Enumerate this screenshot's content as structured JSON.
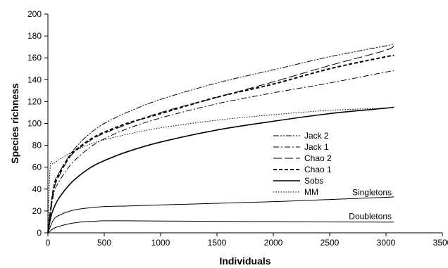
{
  "chart_data": {
    "type": "line",
    "xlabel": "Individuals",
    "ylabel": "Species richness",
    "xlim": [
      0,
      3500
    ],
    "ylim": [
      0,
      200
    ],
    "xticks": [
      0,
      500,
      1000,
      1500,
      2000,
      2500,
      3000,
      3500
    ],
    "yticks": [
      0,
      20,
      40,
      60,
      80,
      100,
      120,
      140,
      160,
      180,
      200
    ],
    "legend_position": "center-right",
    "series": [
      {
        "name": "Jack 2",
        "style": "dashdotdot",
        "width": 1,
        "x": [
          0,
          50,
          100,
          200,
          300,
          400,
          500,
          700,
          1000,
          1500,
          2000,
          2500,
          3000,
          3070
        ],
        "y": [
          0,
          42,
          55,
          72,
          84,
          93,
          100,
          110,
          122,
          137,
          149,
          161,
          171,
          173
        ]
      },
      {
        "name": "Jack 1",
        "style": "dashdot",
        "width": 1,
        "x": [
          0,
          50,
          100,
          200,
          300,
          400,
          500,
          700,
          1000,
          1500,
          2000,
          2500,
          3000,
          3070
        ],
        "y": [
          0,
          35,
          47,
          62,
          72,
          80,
          86,
          95,
          105,
          118,
          128,
          137,
          147,
          148
        ]
      },
      {
        "name": "Chao 2",
        "style": "longdash",
        "width": 1,
        "x": [
          0,
          50,
          100,
          200,
          300,
          400,
          500,
          700,
          1000,
          1500,
          2000,
          2500,
          3000,
          3070
        ],
        "y": [
          0,
          38,
          52,
          70,
          79,
          86,
          91,
          99,
          110,
          124,
          138,
          153,
          167,
          172
        ]
      },
      {
        "name": "Chao 1",
        "style": "dash",
        "width": 2,
        "x": [
          0,
          50,
          100,
          200,
          300,
          400,
          500,
          700,
          1000,
          1500,
          2000,
          2500,
          3000,
          3070
        ],
        "y": [
          0,
          40,
          54,
          71,
          80,
          87,
          92,
          100,
          109,
          124,
          136,
          150,
          161,
          162
        ]
      },
      {
        "name": "Sobs",
        "style": "solid",
        "width": 1.6,
        "x": [
          0,
          25,
          50,
          100,
          200,
          300,
          400,
          500,
          700,
          1000,
          1500,
          2000,
          2500,
          3000,
          3070
        ],
        "y": [
          0,
          14,
          22,
          32,
          45,
          54,
          61,
          66,
          74,
          83,
          94,
          102,
          109,
          114,
          115
        ]
      },
      {
        "name": "MM",
        "style": "dot",
        "width": 1,
        "x": [
          0,
          20,
          50,
          100,
          200,
          300,
          400,
          500,
          700,
          1000,
          1500,
          2000,
          2500,
          3000,
          3070
        ],
        "y": [
          0,
          60,
          63,
          67,
          73,
          78,
          82,
          85,
          90,
          96,
          103,
          108,
          112,
          114,
          115
        ]
      },
      {
        "name": "Singletons",
        "style": "solid",
        "width": 1,
        "x": [
          0,
          50,
          100,
          200,
          300,
          500,
          700,
          1000,
          1500,
          2000,
          2500,
          3000,
          3070
        ],
        "y": [
          0,
          12,
          16,
          20,
          22,
          24,
          24.5,
          25.5,
          27,
          28.5,
          30.5,
          32.5,
          33
        ]
      },
      {
        "name": "Doubletons",
        "style": "solid",
        "width": 1,
        "x": [
          0,
          50,
          100,
          200,
          300,
          400,
          500,
          700,
          1000,
          1500,
          2000,
          2500,
          3000,
          3070
        ],
        "y": [
          0,
          4,
          6,
          8.5,
          10,
          10.5,
          11,
          11,
          10.8,
          10.5,
          10.3,
          10,
          9.8,
          9.8
        ]
      }
    ],
    "legend_entries": [
      "Jack 2",
      "Jack 1",
      "Chao 2",
      "Chao 1",
      "Sobs",
      "MM"
    ],
    "annotations": [
      {
        "text": "Singletons",
        "x": 3050,
        "y": 37
      },
      {
        "text": "Doubletons",
        "x": 3050,
        "y": 15
      }
    ]
  }
}
